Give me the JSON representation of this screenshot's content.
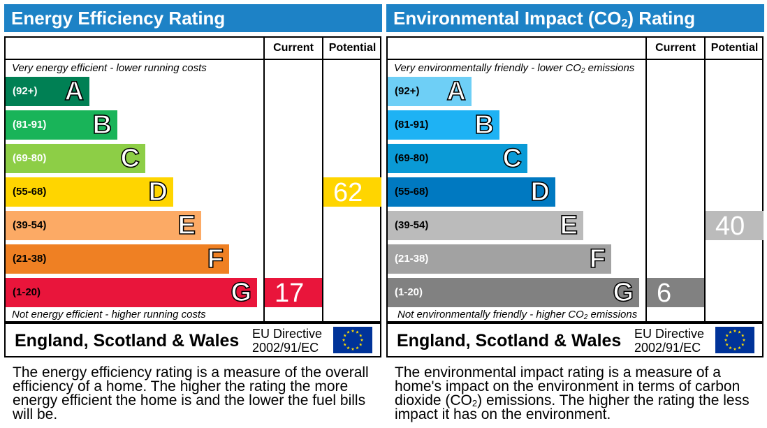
{
  "energy": {
    "title": "Energy Efficiency Rating",
    "col_current": "Current",
    "col_potential": "Potential",
    "top_note": "Very energy efficient - lower running costs",
    "bottom_note": "Not energy efficient - higher running costs",
    "current": "17",
    "potential": "62",
    "country": "England, Scotland & Wales",
    "directive_line1": "EU Directive",
    "directive_line2": "2002/91/EC",
    "description": "The energy efficiency rating is a measure of the overall efficiency of a home. The higher the rating the more energy efficient the home is and the lower the fuel bills will be."
  },
  "environment": {
    "title_pre": "Environmental Impact (CO",
    "title_sub": "2",
    "title_post": ") Rating",
    "col_current": "Current",
    "col_potential": "Potential",
    "top_note_pre": "Very environmentally friendly - lower CO",
    "top_note_sub": "2",
    "top_note_post": " emissions",
    "bottom_note_pre": "Not environmentally friendly - higher CO",
    "bottom_note_sub": "2",
    "bottom_note_post": " emissions",
    "current": "6",
    "potential": "40",
    "country": "England, Scotland & Wales",
    "directive_line1": "EU Directive",
    "directive_line2": "2002/91/EC",
    "desc_pre": "The environmental impact rating is a measure of a home's impact on the environment in terms of carbon dioxide (CO",
    "desc_sub": "2",
    "desc_post": ") emissions. The higher the rating the less impact it has on the environment."
  },
  "chart_data": [
    {
      "type": "bar",
      "title": "Energy Efficiency Rating",
      "bands": [
        {
          "letter": "A",
          "range": "(92+)",
          "color": "#008054"
        },
        {
          "letter": "B",
          "range": "(81-91)",
          "color": "#19b459"
        },
        {
          "letter": "C",
          "range": "(69-80)",
          "color": "#8dce46"
        },
        {
          "letter": "D",
          "range": "(55-68)",
          "color": "#ffd500"
        },
        {
          "letter": "E",
          "range": "(39-54)",
          "color": "#fcaa65"
        },
        {
          "letter": "F",
          "range": "(21-38)",
          "color": "#ef8023"
        },
        {
          "letter": "G",
          "range": "(1-20)",
          "color": "#e9153b"
        }
      ],
      "series": [
        {
          "name": "Current",
          "value": 17,
          "band": "G",
          "color": "#e9153b"
        },
        {
          "name": "Potential",
          "value": 62,
          "band": "D",
          "color": "#ffd500"
        }
      ]
    },
    {
      "type": "bar",
      "title": "Environmental Impact (CO2) Rating",
      "bands": [
        {
          "letter": "A",
          "range": "(92+)",
          "color": "#6ecff6"
        },
        {
          "letter": "B",
          "range": "(81-91)",
          "color": "#1eb2f4"
        },
        {
          "letter": "C",
          "range": "(69-80)",
          "color": "#0a9ad6"
        },
        {
          "letter": "D",
          "range": "(55-68)",
          "color": "#0079c1"
        },
        {
          "letter": "E",
          "range": "(39-54)",
          "color": "#bbbbbb"
        },
        {
          "letter": "F",
          "range": "(21-38)",
          "color": "#a2a2a2"
        },
        {
          "letter": "G",
          "range": "(1-20)",
          "color": "#818181"
        }
      ],
      "series": [
        {
          "name": "Current",
          "value": 6,
          "band": "G",
          "color": "#818181"
        },
        {
          "name": "Potential",
          "value": 40,
          "band": "E",
          "color": "#bbbbbb"
        }
      ]
    }
  ]
}
